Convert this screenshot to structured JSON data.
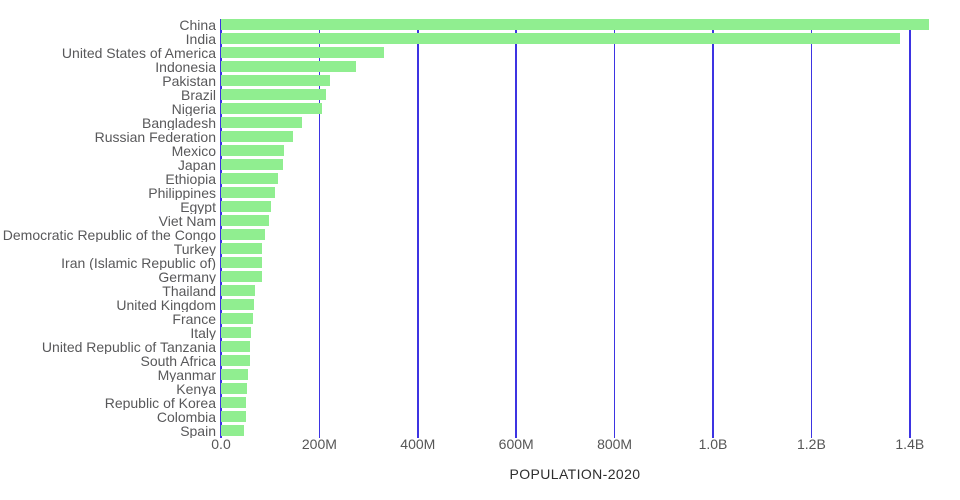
{
  "chart_data": {
    "type": "bar",
    "orientation": "horizontal",
    "title": "POPULATION-2020",
    "xlabel": "POPULATION-2020",
    "ylabel": "",
    "unit": "people",
    "sort": "descending",
    "grid": "vertical",
    "legend": "none",
    "categories": [
      "China",
      "India",
      "United States of America",
      "Indonesia",
      "Pakistan",
      "Brazil",
      "Nigeria",
      "Bangladesh",
      "Russian Federation",
      "Mexico",
      "Japan",
      "Ethiopia",
      "Philippines",
      "Egypt",
      "Viet Nam",
      "Democratic Republic of the Congo",
      "Turkey",
      "Iran (Islamic Republic of)",
      "Germany",
      "Thailand",
      "United Kingdom",
      "France",
      "Italy",
      "United Republic of Tanzania",
      "South Africa",
      "Myanmar",
      "Kenya",
      "Republic of Korea",
      "Colombia",
      "Spain"
    ],
    "values_millions": [
      1439.3,
      1380.0,
      331.0,
      273.5,
      220.9,
      212.6,
      206.1,
      164.7,
      145.9,
      128.9,
      126.5,
      115.0,
      109.6,
      102.3,
      97.3,
      89.6,
      84.3,
      84.0,
      83.8,
      69.8,
      67.9,
      65.3,
      60.5,
      59.7,
      59.3,
      54.4,
      53.8,
      51.3,
      50.9,
      46.8
    ],
    "x_ticks": [
      {
        "label": "0.0",
        "millions": 0
      },
      {
        "label": "200M",
        "millions": 200
      },
      {
        "label": "400M",
        "millions": 400
      },
      {
        "label": "600M",
        "millions": 600
      },
      {
        "label": "800M",
        "millions": 800
      },
      {
        "label": "1.0B",
        "millions": 1000
      },
      {
        "label": "1.2B",
        "millions": 1200
      },
      {
        "label": "1.4B",
        "millions": 1400
      }
    ],
    "xlim_millions": [
      0,
      1480
    ],
    "colors": {
      "bar": "#90ee90",
      "gridline": "#3d34e2",
      "label_text": "#58585a",
      "tick_text": "#565656",
      "title_text": "#2e2e2e",
      "background": "#ffffff"
    }
  }
}
